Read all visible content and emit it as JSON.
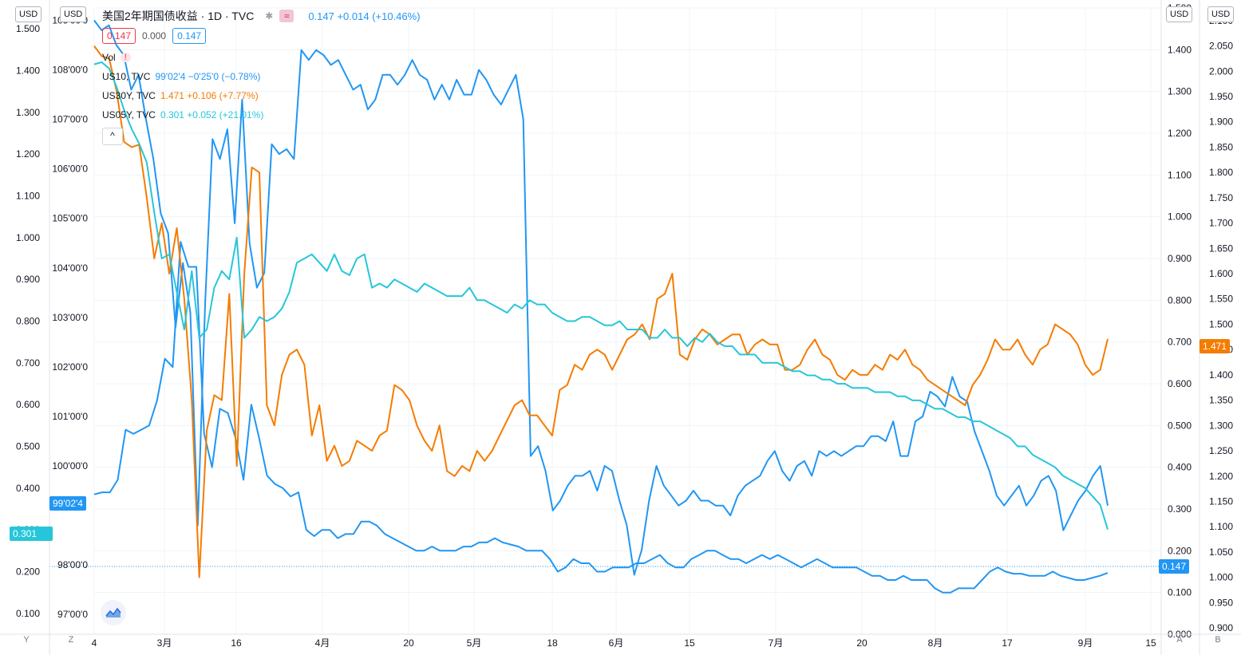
{
  "header": {
    "title": "美国2年期国债收益 · 1D · TVC",
    "change": "0.147 +0.014 (+10.46%)",
    "icon_a": "asterisk-icon",
    "icon_b": "wave-icon",
    "box_bid": "0.147",
    "box_spread": "0.000",
    "box_ask": "0.147",
    "vol_label": "Vol",
    "vol_warning": "!"
  },
  "series_legend": [
    {
      "name": "US10, TVC",
      "value": "99'02'4 −0'25'0 (−0.78%)",
      "color": "#2196f3"
    },
    {
      "name": "US30Y, TVC",
      "value": "1.471 +0.106 (+7.77%)",
      "color": "#f57c00"
    },
    {
      "name": "US05Y, TVC",
      "value": "0.301 +0.052 (+21.01%)",
      "color": "#26c6da"
    }
  ],
  "collapse_label": "^",
  "units": {
    "left_y": "USD",
    "left_z": "USD",
    "right_a": "USD",
    "right_b": "USD"
  },
  "corners": {
    "y": "Y",
    "z": "Z",
    "a": "A",
    "b": "B"
  },
  "price_tags": {
    "left_us10": "99'02'4",
    "left_us05": "0.301",
    "right_us2": "0.147",
    "right_us30": "1.471"
  },
  "chart_data": {
    "type": "line",
    "x_ticks": [
      "4",
      "3月",
      "16",
      "4月",
      "20",
      "5月",
      "18",
      "6月",
      "15",
      "7月",
      "20",
      "8月",
      "17",
      "9月",
      "15"
    ],
    "axis_y": {
      "ticks": [
        "1.500",
        "1.400",
        "1.300",
        "1.200",
        "1.100",
        "1.000",
        "0.900",
        "0.800",
        "0.700",
        "0.600",
        "0.500",
        "0.400",
        "0.300",
        "0.200",
        "0.100"
      ]
    },
    "axis_z": {
      "ticks": [
        "109'00'0",
        "108'00'0",
        "107'00'0",
        "106'00'0",
        "105'00'0",
        "104'00'0",
        "103'00'0",
        "102'00'0",
        "101'00'0",
        "100'00'0",
        "98'00'0",
        "97'00'0"
      ]
    },
    "axis_a": {
      "ticks": [
        "1.500",
        "1.400",
        "1.300",
        "1.200",
        "1.100",
        "1.000",
        "0.900",
        "0.800",
        "0.700",
        "0.600",
        "0.500",
        "0.400",
        "0.300",
        "0.200",
        "0.100",
        "−0.000"
      ]
    },
    "axis_b": {
      "ticks": [
        "2.100",
        "2.050",
        "2.000",
        "1.950",
        "1.900",
        "1.850",
        "1.800",
        "1.750",
        "1.700",
        "1.650",
        "1.600",
        "1.550",
        "1.500",
        "1.450",
        "1.400",
        "1.350",
        "1.300",
        "1.250",
        "1.200",
        "1.150",
        "1.100",
        "1.050",
        "1.000",
        "0.950",
        "0.900"
      ]
    },
    "series": [
      {
        "name": "US2Y",
        "color": "#2196f3",
        "axis": "A",
        "range": [
          -0.0,
          1.5
        ],
        "values": [
          0.335,
          0.34,
          0.34,
          0.37,
          0.49,
          0.48,
          0.49,
          0.5,
          0.56,
          0.66,
          0.64,
          0.94,
          0.88,
          0.88,
          0.48,
          0.4,
          0.54,
          0.53,
          0.47,
          0.37,
          0.55,
          0.47,
          0.38,
          0.36,
          0.35,
          0.33,
          0.34,
          0.25,
          0.235,
          0.25,
          0.25,
          0.23,
          0.24,
          0.24,
          0.27,
          0.27,
          0.26,
          0.24,
          0.23,
          0.22,
          0.21,
          0.2,
          0.2,
          0.21,
          0.2,
          0.2,
          0.2,
          0.21,
          0.21,
          0.22,
          0.22,
          0.23,
          0.22,
          0.215,
          0.21,
          0.2,
          0.2,
          0.2,
          0.18,
          0.15,
          0.16,
          0.18,
          0.17,
          0.17,
          0.15,
          0.15,
          0.16,
          0.16,
          0.16,
          0.17,
          0.17,
          0.18,
          0.19,
          0.17,
          0.16,
          0.16,
          0.18,
          0.19,
          0.2,
          0.2,
          0.19,
          0.18,
          0.18,
          0.17,
          0.18,
          0.19,
          0.18,
          0.19,
          0.18,
          0.17,
          0.16,
          0.17,
          0.18,
          0.17,
          0.16,
          0.16,
          0.16,
          0.16,
          0.15,
          0.14,
          0.14,
          0.13,
          0.13,
          0.14,
          0.13,
          0.13,
          0.13,
          0.11,
          0.1,
          0.1,
          0.11,
          0.11,
          0.11,
          0.13,
          0.15,
          0.16,
          0.15,
          0.145,
          0.145,
          0.14,
          0.14,
          0.14,
          0.15,
          0.14,
          0.135,
          0.13,
          0.13,
          0.135,
          0.14,
          0.147
        ]
      },
      {
        "name": "US10",
        "color": "#2196f3",
        "axis": "Z",
        "range": [
          96.6,
          109.25
        ],
        "values": [
          109.0,
          108.8,
          108.9,
          108.5,
          108.3,
          107.6,
          107.9,
          107.0,
          106.2,
          105.1,
          104.7,
          102.8,
          104.1,
          103.1,
          98.8,
          103.3,
          106.6,
          106.2,
          106.8,
          104.9,
          107.4,
          104.5,
          103.6,
          103.9,
          106.5,
          106.3,
          106.4,
          106.2,
          108.4,
          108.2,
          108.4,
          108.3,
          108.1,
          108.2,
          107.9,
          107.6,
          107.7,
          107.2,
          107.4,
          107.9,
          107.9,
          107.7,
          107.9,
          108.2,
          107.9,
          107.8,
          107.4,
          107.7,
          107.4,
          107.8,
          107.5,
          107.5,
          108.0,
          107.8,
          107.5,
          107.3,
          107.6,
          107.9,
          107.0,
          100.2,
          100.4,
          99.9,
          99.1,
          99.3,
          99.6,
          99.8,
          99.8,
          99.9,
          99.5,
          100.0,
          99.9,
          99.3,
          98.8,
          97.8,
          98.3,
          99.3,
          100.0,
          99.6,
          99.4,
          99.2,
          99.3,
          99.5,
          99.3,
          99.3,
          99.2,
          99.2,
          99.0,
          99.4,
          99.6,
          99.7,
          99.8,
          100.1,
          100.3,
          99.9,
          99.7,
          100.0,
          100.1,
          99.8,
          100.3,
          100.2,
          100.3,
          100.2,
          100.3,
          100.4,
          100.4,
          100.6,
          100.6,
          100.5,
          100.9,
          100.2,
          100.2,
          100.9,
          101.0,
          101.5,
          101.4,
          101.2,
          101.8,
          101.4,
          101.3,
          100.7,
          100.3,
          99.9,
          99.4,
          99.2,
          99.4,
          99.6,
          99.2,
          99.4,
          99.7,
          99.8,
          99.5,
          98.7,
          99.0,
          99.3,
          99.5,
          99.8,
          100.0,
          99.2
        ]
      },
      {
        "name": "US30Y",
        "color": "#f57c00",
        "axis": "B",
        "range": [
          0.8875,
          2.125
        ],
        "values": [
          2.05,
          2.03,
          2.025,
          1.96,
          1.86,
          1.85,
          1.855,
          1.75,
          1.63,
          1.7,
          1.6,
          1.69,
          1.55,
          1.35,
          1.0,
          1.29,
          1.36,
          1.35,
          1.56,
          1.22,
          1.6,
          1.81,
          1.8,
          1.34,
          1.3,
          1.4,
          1.44,
          1.45,
          1.42,
          1.28,
          1.34,
          1.23,
          1.26,
          1.22,
          1.23,
          1.27,
          1.26,
          1.25,
          1.28,
          1.29,
          1.38,
          1.37,
          1.35,
          1.3,
          1.27,
          1.25,
          1.3,
          1.21,
          1.2,
          1.22,
          1.21,
          1.25,
          1.23,
          1.25,
          1.28,
          1.31,
          1.34,
          1.35,
          1.32,
          1.32,
          1.3,
          1.28,
          1.37,
          1.38,
          1.42,
          1.41,
          1.44,
          1.45,
          1.44,
          1.41,
          1.44,
          1.47,
          1.48,
          1.5,
          1.47,
          1.55,
          1.56,
          1.6,
          1.44,
          1.43,
          1.47,
          1.49,
          1.48,
          1.46,
          1.47,
          1.48,
          1.48,
          1.44,
          1.46,
          1.47,
          1.46,
          1.46,
          1.41,
          1.41,
          1.42,
          1.45,
          1.47,
          1.44,
          1.43,
          1.4,
          1.39,
          1.41,
          1.4,
          1.4,
          1.42,
          1.41,
          1.44,
          1.43,
          1.45,
          1.42,
          1.41,
          1.39,
          1.38,
          1.37,
          1.36,
          1.35,
          1.34,
          1.38,
          1.4,
          1.43,
          1.47,
          1.45,
          1.45,
          1.47,
          1.44,
          1.42,
          1.45,
          1.46,
          1.5,
          1.49,
          1.48,
          1.46,
          1.42,
          1.4,
          1.41,
          1.471
        ]
      },
      {
        "name": "US05Y",
        "color": "#26c6da",
        "axis": "Y",
        "range": [
          0.05,
          1.55
        ],
        "values": [
          1.415,
          1.42,
          1.405,
          1.36,
          1.305,
          1.26,
          1.225,
          1.18,
          1.06,
          0.95,
          0.96,
          0.87,
          0.78,
          0.92,
          0.76,
          0.78,
          0.88,
          0.92,
          0.9,
          1.0,
          0.76,
          0.78,
          0.81,
          0.8,
          0.81,
          0.83,
          0.87,
          0.94,
          0.95,
          0.96,
          0.94,
          0.92,
          0.96,
          0.92,
          0.91,
          0.95,
          0.96,
          0.88,
          0.89,
          0.88,
          0.9,
          0.89,
          0.88,
          0.87,
          0.89,
          0.88,
          0.87,
          0.86,
          0.86,
          0.86,
          0.88,
          0.85,
          0.85,
          0.84,
          0.83,
          0.82,
          0.84,
          0.83,
          0.85,
          0.84,
          0.84,
          0.82,
          0.81,
          0.8,
          0.8,
          0.81,
          0.81,
          0.8,
          0.79,
          0.79,
          0.8,
          0.78,
          0.78,
          0.78,
          0.76,
          0.76,
          0.78,
          0.76,
          0.76,
          0.74,
          0.76,
          0.75,
          0.77,
          0.75,
          0.74,
          0.74,
          0.72,
          0.72,
          0.72,
          0.7,
          0.7,
          0.7,
          0.69,
          0.68,
          0.68,
          0.67,
          0.67,
          0.66,
          0.66,
          0.65,
          0.65,
          0.64,
          0.64,
          0.64,
          0.63,
          0.63,
          0.63,
          0.62,
          0.62,
          0.61,
          0.61,
          0.6,
          0.59,
          0.59,
          0.58,
          0.57,
          0.57,
          0.56,
          0.56,
          0.55,
          0.54,
          0.53,
          0.52,
          0.5,
          0.5,
          0.48,
          0.47,
          0.46,
          0.45,
          0.43,
          0.42,
          0.41,
          0.4,
          0.38,
          0.36,
          0.301
        ]
      }
    ]
  }
}
